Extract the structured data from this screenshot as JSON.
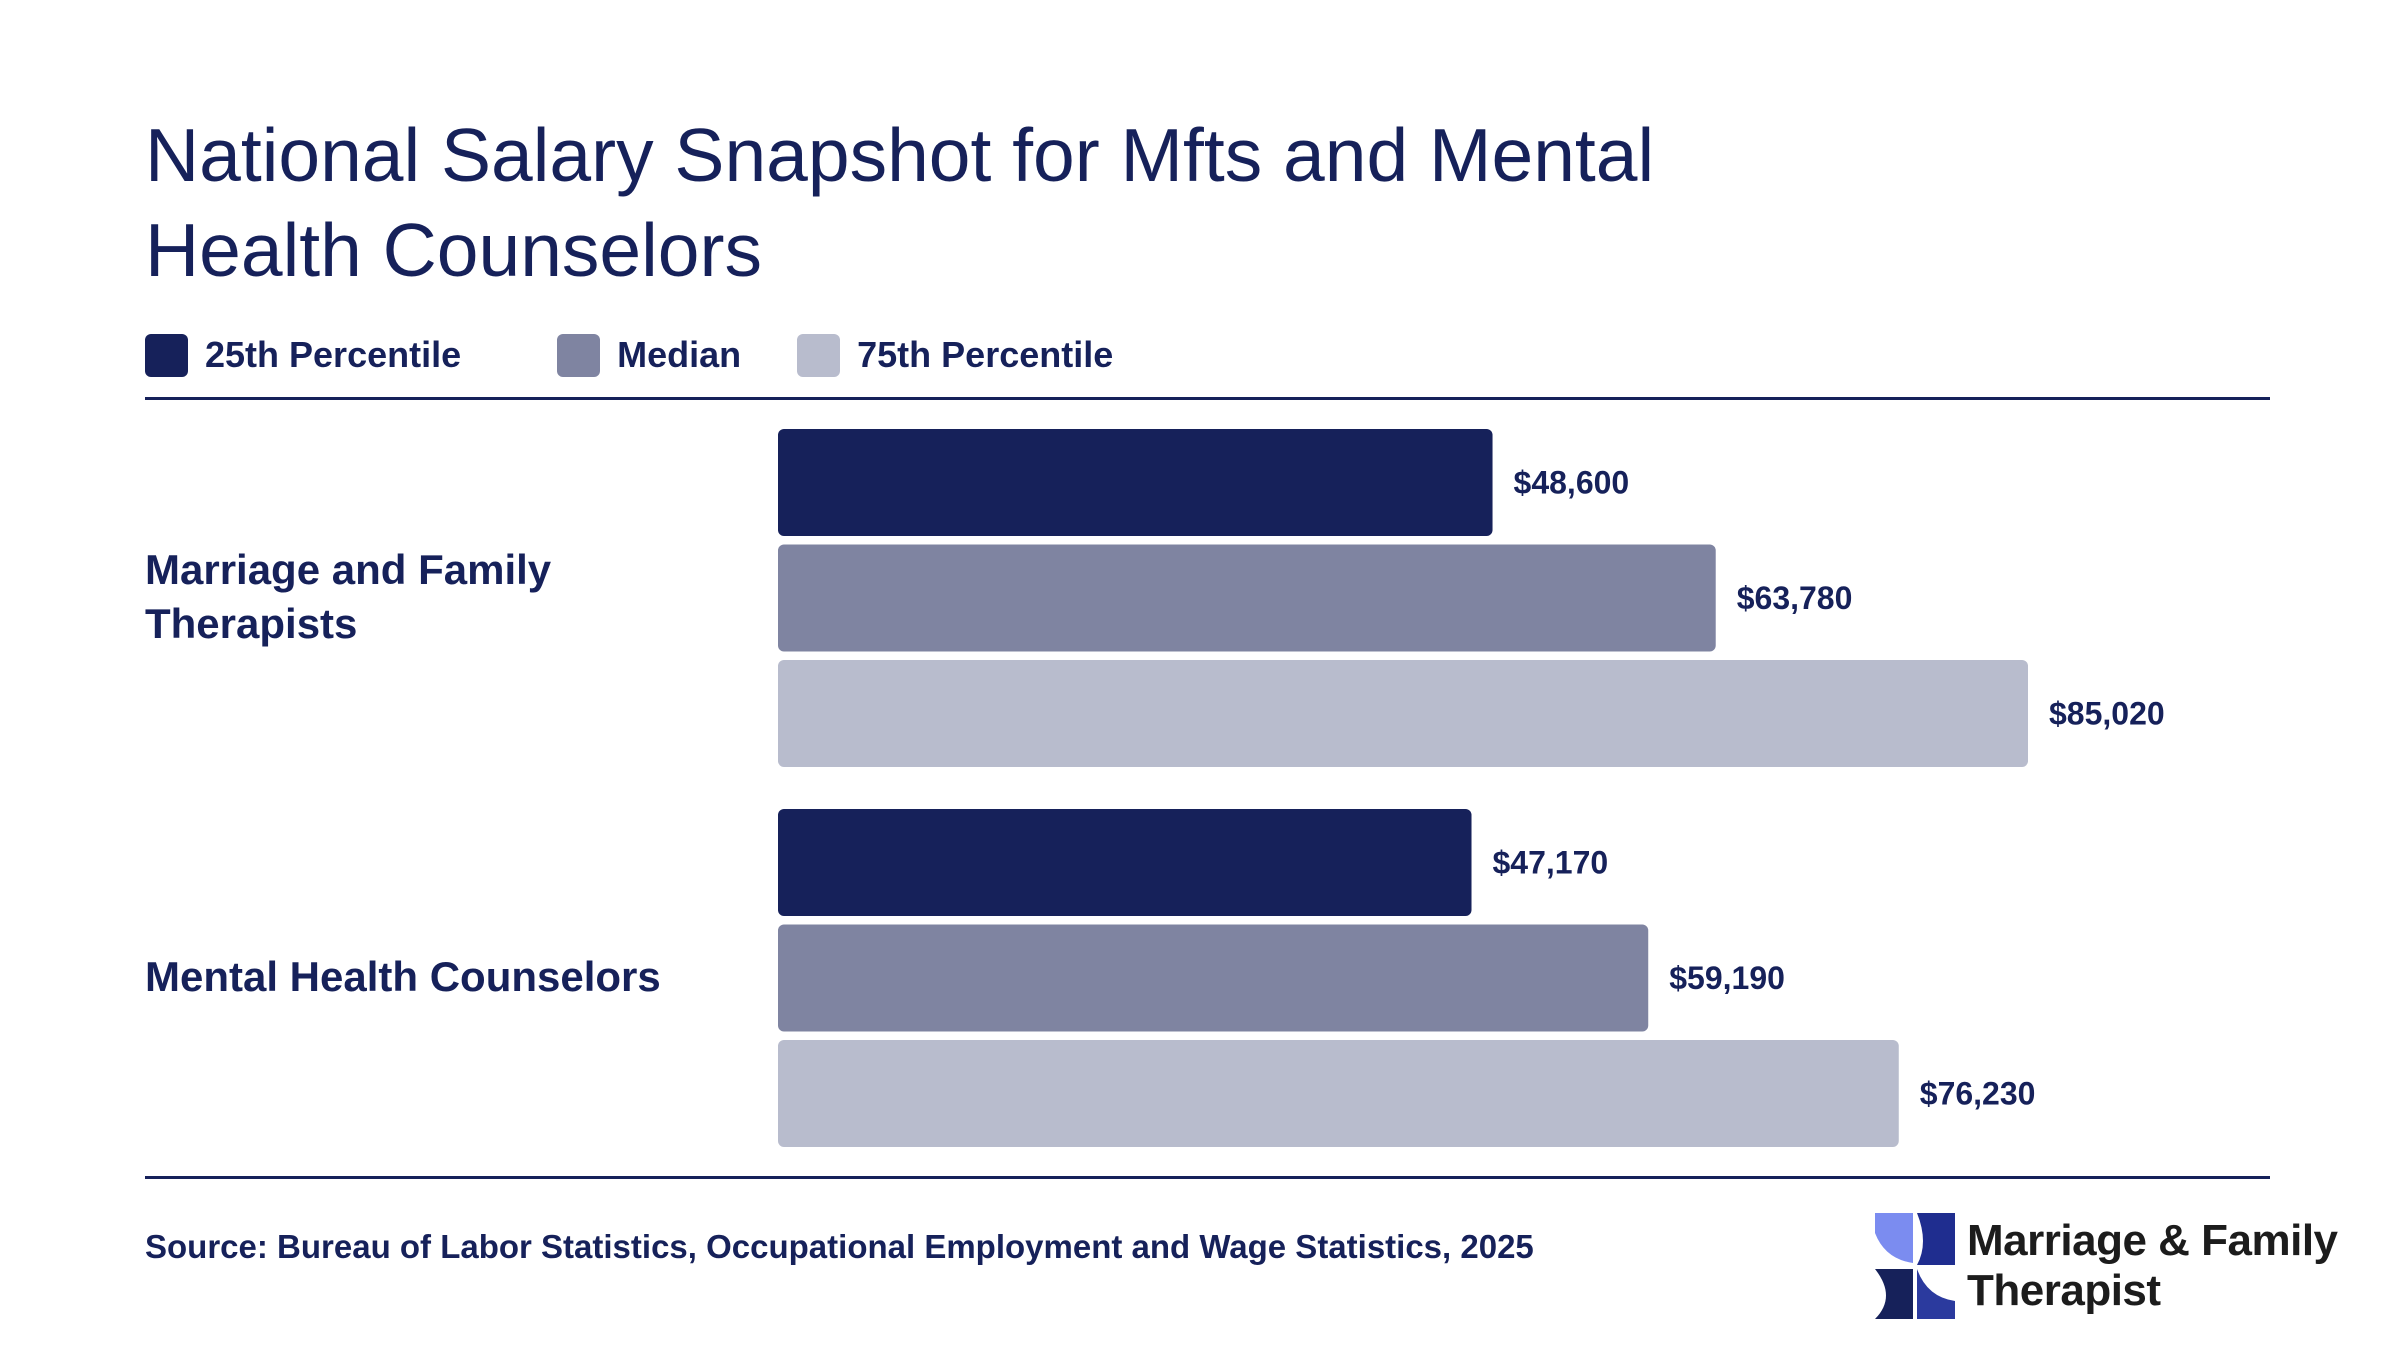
{
  "title": "National Salary Snapshot for Mfts and Mental Health Counselors",
  "legend": [
    {
      "label": "25th Percentile",
      "color": "#16215a"
    },
    {
      "label": "Median",
      "color": "#7f84a1"
    },
    {
      "label": "75th Percentile",
      "color": "#b8bccd"
    }
  ],
  "chart_data": {
    "type": "bar",
    "orientation": "horizontal",
    "title": "National Salary Snapshot for Mfts and Mental Health Counselors",
    "categories": [
      "Marriage and Family Therapists",
      "Mental Health Counselors"
    ],
    "series": [
      {
        "name": "25th Percentile",
        "values": [
          48600,
          47170
        ],
        "labels": [
          "$48,600",
          "$47,170"
        ],
        "color": "#16215a"
      },
      {
        "name": "Median",
        "values": [
          63780,
          59190
        ],
        "labels": [
          "$63,780",
          "$59,190"
        ],
        "color": "#7f84a1"
      },
      {
        "name": "75th Percentile",
        "values": [
          85020,
          76230
        ],
        "labels": [
          "$85,020",
          "$76,230"
        ],
        "color": "#b8bccd"
      }
    ],
    "xlabel": "",
    "ylabel": "",
    "xlim": [
      0,
      85020
    ],
    "grid": false,
    "legend_position": "top-left"
  },
  "source": "Source: Bureau of Labor Statistics, Occupational Employment and Wage Statistics, 2025",
  "logo": {
    "line1": "Marriage & Family",
    "line2": "Therapist",
    "colors": [
      "#7b8cf0",
      "#1f2d8f",
      "#16215a"
    ]
  }
}
